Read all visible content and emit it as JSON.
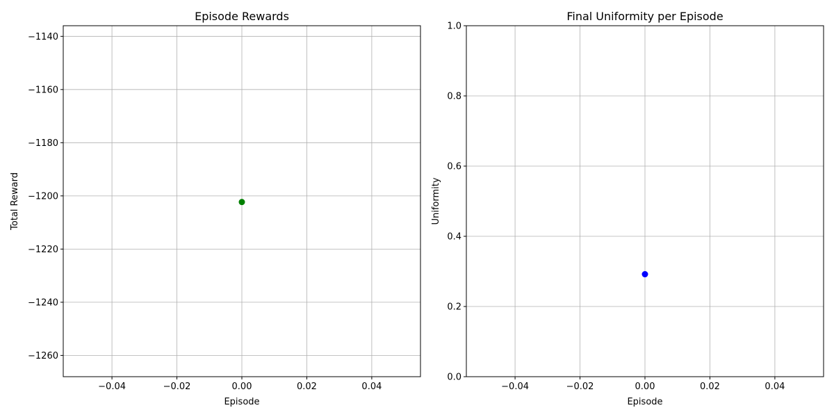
{
  "chart_data": [
    {
      "type": "scatter",
      "title": "Episode Rewards",
      "xlabel": "Episode",
      "ylabel": "Total Reward",
      "xlim": [
        -0.055,
        0.055
      ],
      "ylim": [
        -1268,
        -1136
      ],
      "xticks": [
        -0.04,
        -0.02,
        0.0,
        0.02,
        0.04
      ],
      "xtick_labels": [
        "−0.04",
        "−0.02",
        "0.00",
        "0.02",
        "0.04"
      ],
      "yticks": [
        -1260,
        -1240,
        -1220,
        -1200,
        -1180,
        -1160,
        -1140
      ],
      "ytick_labels": [
        "−1260",
        "−1240",
        "−1220",
        "−1200",
        "−1180",
        "−1160",
        "−1140"
      ],
      "grid": true,
      "series": [
        {
          "color": "#008000",
          "points": [
            {
              "x": 0,
              "y": -1202.3
            }
          ]
        }
      ]
    },
    {
      "type": "scatter",
      "title": "Final Uniformity per Episode",
      "xlabel": "Episode",
      "ylabel": "Uniformity",
      "xlim": [
        -0.055,
        0.055
      ],
      "ylim": [
        0,
        1
      ],
      "xticks": [
        -0.04,
        -0.02,
        0.0,
        0.02,
        0.04
      ],
      "xtick_labels": [
        "−0.04",
        "−0.02",
        "0.00",
        "0.02",
        "0.04"
      ],
      "yticks": [
        0.0,
        0.2,
        0.4,
        0.6,
        0.8,
        1.0
      ],
      "ytick_labels": [
        "0.0",
        "0.2",
        "0.4",
        "0.6",
        "0.8",
        "1.0"
      ],
      "grid": true,
      "series": [
        {
          "color": "#0000ff",
          "points": [
            {
              "x": 0,
              "y": 0.292
            }
          ]
        }
      ]
    }
  ]
}
